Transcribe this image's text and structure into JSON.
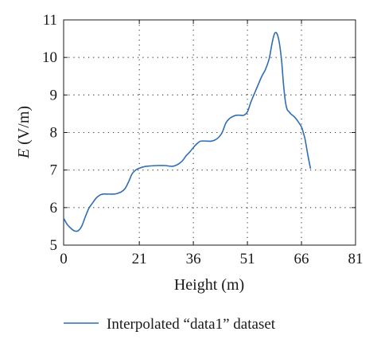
{
  "chart_data": {
    "type": "line",
    "xlabel": "Height (m)",
    "ylabel_var": "E",
    "ylabel_unit": " (V/m)",
    "xlim": [
      0,
      81
    ],
    "ylim": [
      5,
      11
    ],
    "xticks": [
      0,
      21,
      36,
      51,
      66,
      81
    ],
    "yticks": [
      5,
      6,
      7,
      8,
      9,
      10,
      11
    ],
    "grid": true,
    "legend_position": "bottom",
    "series": [
      {
        "name": "Interpolated “data1” dataset",
        "color": "#2f6db5",
        "points": [
          [
            0,
            5.72
          ],
          [
            1,
            5.55
          ],
          [
            2,
            5.45
          ],
          [
            3,
            5.38
          ],
          [
            4,
            5.38
          ],
          [
            5,
            5.5
          ],
          [
            6,
            5.75
          ],
          [
            7,
            5.98
          ],
          [
            8,
            6.12
          ],
          [
            9,
            6.25
          ],
          [
            10,
            6.33
          ],
          [
            11,
            6.36
          ],
          [
            12,
            6.36
          ],
          [
            14,
            6.36
          ],
          [
            15,
            6.38
          ],
          [
            16,
            6.42
          ],
          [
            17,
            6.5
          ],
          [
            18,
            6.68
          ],
          [
            19,
            6.9
          ],
          [
            20,
            7.0
          ],
          [
            21,
            7.05
          ],
          [
            22,
            7.08
          ],
          [
            23,
            7.1
          ],
          [
            26,
            7.12
          ],
          [
            28,
            7.12
          ],
          [
            30,
            7.1
          ],
          [
            31,
            7.12
          ],
          [
            32,
            7.17
          ],
          [
            33,
            7.25
          ],
          [
            34,
            7.38
          ],
          [
            35,
            7.48
          ],
          [
            36,
            7.6
          ],
          [
            37,
            7.7
          ],
          [
            38,
            7.77
          ],
          [
            40,
            7.77
          ],
          [
            41,
            7.77
          ],
          [
            42,
            7.8
          ],
          [
            43,
            7.87
          ],
          [
            44,
            8.0
          ],
          [
            45,
            8.25
          ],
          [
            46,
            8.37
          ],
          [
            47,
            8.43
          ],
          [
            48,
            8.46
          ],
          [
            49,
            8.46
          ],
          [
            50,
            8.46
          ],
          [
            51,
            8.55
          ],
          [
            52,
            8.82
          ],
          [
            53,
            9.05
          ],
          [
            54,
            9.28
          ],
          [
            55,
            9.5
          ],
          [
            56,
            9.68
          ],
          [
            57,
            9.95
          ],
          [
            57.5,
            10.2
          ],
          [
            58,
            10.45
          ],
          [
            58.5,
            10.63
          ],
          [
            59,
            10.66
          ],
          [
            59.5,
            10.55
          ],
          [
            60,
            10.3
          ],
          [
            60.5,
            9.9
          ],
          [
            61,
            9.3
          ],
          [
            61.5,
            8.85
          ],
          [
            62,
            8.62
          ],
          [
            62.5,
            8.56
          ],
          [
            63,
            8.5
          ],
          [
            64,
            8.42
          ],
          [
            65,
            8.3
          ],
          [
            66,
            8.15
          ],
          [
            66.5,
            8.0
          ],
          [
            67,
            7.82
          ],
          [
            67.5,
            7.55
          ],
          [
            68,
            7.28
          ],
          [
            68.5,
            7.05
          ]
        ]
      }
    ]
  }
}
